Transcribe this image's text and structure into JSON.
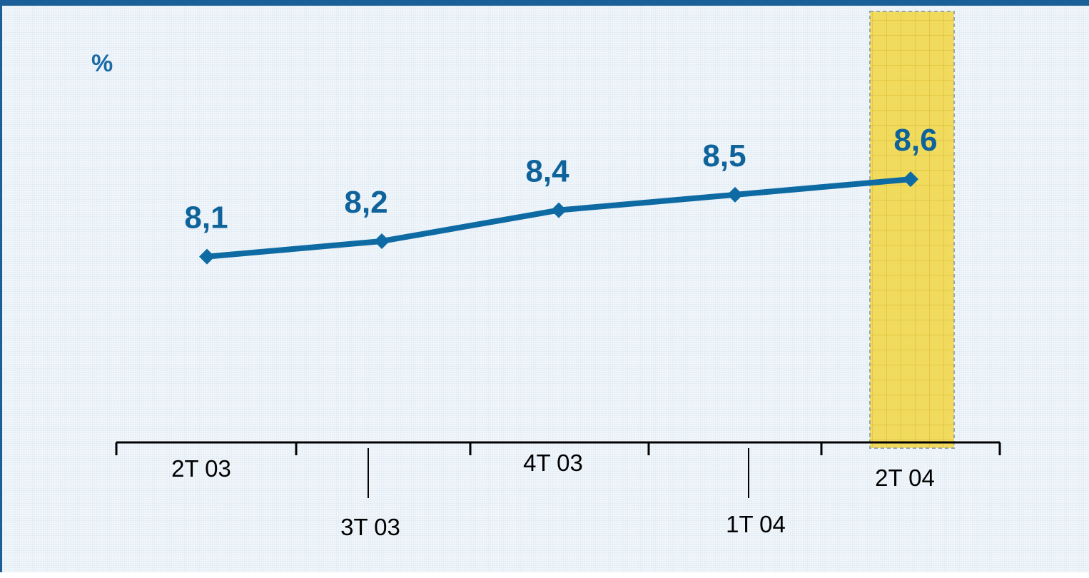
{
  "chart_data": {
    "type": "line",
    "unit_label": "%",
    "categories": [
      "2T 03",
      "3T 03",
      "4T 03",
      "1T 04",
      "2T 04"
    ],
    "values": [
      8.1,
      8.2,
      8.4,
      8.5,
      8.6
    ],
    "data_labels": [
      "8,1",
      "8,2",
      "8,4",
      "8,5",
      "8,6"
    ],
    "highlighted_category": "2T 04",
    "ylim": [
      6.9,
      9.2
    ],
    "grid": false,
    "legend": "none",
    "colors": {
      "line": "#0e6aa3",
      "data_label": "#0f639b",
      "highlight": "#f1d53b",
      "frame": "#1a5f97"
    }
  }
}
